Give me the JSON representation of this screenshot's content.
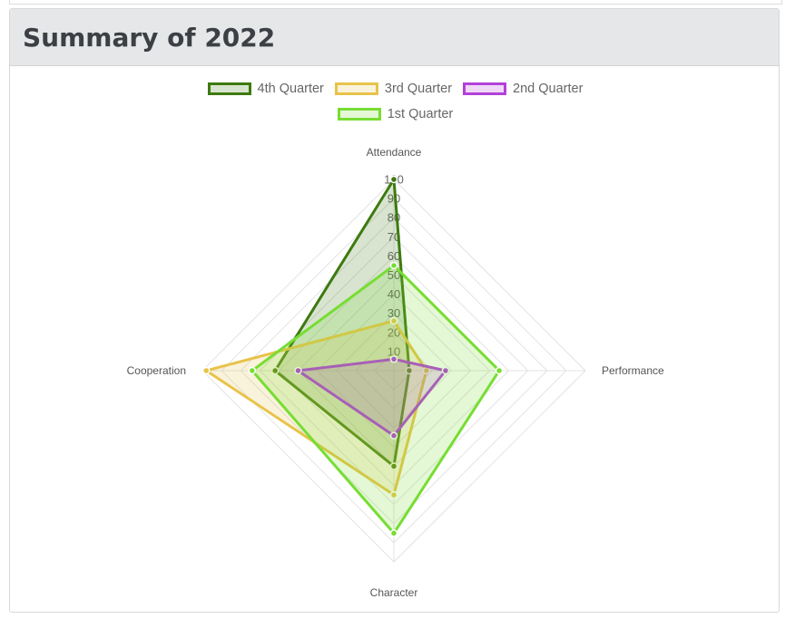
{
  "card": {
    "title": "Summary of 2022"
  },
  "chart_data": {
    "type": "radar",
    "labels": [
      "Attendance",
      "Performance",
      "Character",
      "Cooperation"
    ],
    "scale": {
      "min": 0,
      "max": 100,
      "step": 10,
      "ticks": [
        "10",
        "20",
        "30",
        "40",
        "50",
        "60",
        "70",
        "80",
        "90",
        "100"
      ]
    },
    "legend_position": "top",
    "series": [
      {
        "name": "4th Quarter",
        "values": [
          100,
          8,
          50,
          62
        ],
        "color": "#3d7a0f",
        "fill": "rgba(61,122,15,0.2)"
      },
      {
        "name": "3rd Quarter",
        "values": [
          26,
          17,
          65,
          98
        ],
        "color": "#e8c34a",
        "fill": "rgba(232,195,74,0.2)"
      },
      {
        "name": "2nd Quarter",
        "values": [
          6,
          27,
          34,
          50
        ],
        "color": "#b341d8",
        "fill": "rgba(179,65,216,0.2)"
      },
      {
        "name": "1st Quarter",
        "values": [
          55,
          55,
          85,
          74
        ],
        "color": "#77dd33",
        "fill": "rgba(119,221,51,0.2)"
      }
    ]
  }
}
